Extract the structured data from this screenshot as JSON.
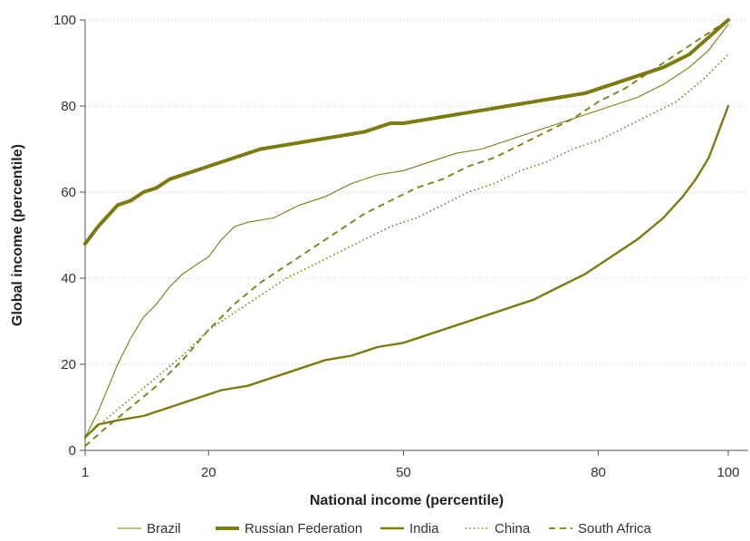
{
  "chart_data": {
    "type": "line",
    "xlabel": "National income (percentile)",
    "ylabel": "Global income (percentile)",
    "xlim": [
      1,
      100
    ],
    "ylim": [
      0,
      100
    ],
    "x_ticks": [
      1,
      20,
      50,
      80,
      100
    ],
    "y_ticks": [
      0,
      20,
      40,
      60,
      80,
      100
    ],
    "grid": "horizontal-dotted",
    "legend": "bottom",
    "color": "#7b7b10",
    "series": [
      {
        "name": "Brazil",
        "style": "thin",
        "points": [
          [
            1,
            3
          ],
          [
            3,
            9
          ],
          [
            6,
            20
          ],
          [
            8,
            26
          ],
          [
            10,
            31
          ],
          [
            12,
            34
          ],
          [
            14,
            38
          ],
          [
            16,
            41
          ],
          [
            18,
            43
          ],
          [
            20,
            45
          ],
          [
            22,
            49
          ],
          [
            24,
            52
          ],
          [
            26,
            53
          ],
          [
            30,
            54
          ],
          [
            34,
            57
          ],
          [
            38,
            59
          ],
          [
            42,
            62
          ],
          [
            46,
            64
          ],
          [
            50,
            65
          ],
          [
            54,
            67
          ],
          [
            58,
            69
          ],
          [
            62,
            70
          ],
          [
            66,
            72
          ],
          [
            70,
            74
          ],
          [
            74,
            76
          ],
          [
            78,
            78
          ],
          [
            82,
            80
          ],
          [
            86,
            82
          ],
          [
            90,
            85
          ],
          [
            94,
            89
          ],
          [
            97,
            93
          ],
          [
            100,
            99
          ]
        ]
      },
      {
        "name": "Russian Federation",
        "style": "thick",
        "points": [
          [
            1,
            48
          ],
          [
            3,
            52
          ],
          [
            6,
            57
          ],
          [
            8,
            58
          ],
          [
            10,
            60
          ],
          [
            12,
            61
          ],
          [
            14,
            63
          ],
          [
            16,
            64
          ],
          [
            18,
            65
          ],
          [
            20,
            66
          ],
          [
            24,
            68
          ],
          [
            28,
            70
          ],
          [
            32,
            71
          ],
          [
            36,
            72
          ],
          [
            40,
            73
          ],
          [
            44,
            74
          ],
          [
            48,
            76
          ],
          [
            50,
            76
          ],
          [
            54,
            77
          ],
          [
            58,
            78
          ],
          [
            62,
            79
          ],
          [
            66,
            80
          ],
          [
            70,
            81
          ],
          [
            74,
            82
          ],
          [
            78,
            83
          ],
          [
            82,
            85
          ],
          [
            86,
            87
          ],
          [
            90,
            89
          ],
          [
            94,
            92
          ],
          [
            97,
            96
          ],
          [
            100,
            100
          ]
        ]
      },
      {
        "name": "India",
        "style": "medium",
        "points": [
          [
            1,
            3
          ],
          [
            3,
            6
          ],
          [
            6,
            7
          ],
          [
            10,
            8
          ],
          [
            14,
            10
          ],
          [
            18,
            12
          ],
          [
            22,
            14
          ],
          [
            26,
            15
          ],
          [
            30,
            17
          ],
          [
            34,
            19
          ],
          [
            38,
            21
          ],
          [
            42,
            22
          ],
          [
            46,
            24
          ],
          [
            50,
            25
          ],
          [
            54,
            27
          ],
          [
            58,
            29
          ],
          [
            62,
            31
          ],
          [
            66,
            33
          ],
          [
            70,
            35
          ],
          [
            74,
            38
          ],
          [
            78,
            41
          ],
          [
            82,
            45
          ],
          [
            86,
            49
          ],
          [
            90,
            54
          ],
          [
            93,
            59
          ],
          [
            95,
            63
          ],
          [
            97,
            68
          ],
          [
            98,
            72
          ],
          [
            99,
            76
          ],
          [
            100,
            80
          ]
        ]
      },
      {
        "name": "China",
        "style": "dotted",
        "points": [
          [
            1,
            3
          ],
          [
            4,
            7
          ],
          [
            8,
            12
          ],
          [
            12,
            17
          ],
          [
            16,
            22
          ],
          [
            20,
            28
          ],
          [
            24,
            32
          ],
          [
            28,
            36
          ],
          [
            32,
            40
          ],
          [
            36,
            43
          ],
          [
            40,
            46
          ],
          [
            44,
            49
          ],
          [
            48,
            52
          ],
          [
            52,
            54
          ],
          [
            56,
            57
          ],
          [
            60,
            60
          ],
          [
            64,
            62
          ],
          [
            68,
            65
          ],
          [
            72,
            67
          ],
          [
            76,
            70
          ],
          [
            80,
            72
          ],
          [
            84,
            75
          ],
          [
            88,
            78
          ],
          [
            92,
            81
          ],
          [
            96,
            86
          ],
          [
            98,
            89
          ],
          [
            100,
            92
          ]
        ]
      },
      {
        "name": "South Africa",
        "style": "dashed",
        "points": [
          [
            1,
            1
          ],
          [
            4,
            5
          ],
          [
            8,
            10
          ],
          [
            12,
            15
          ],
          [
            16,
            21
          ],
          [
            20,
            28
          ],
          [
            24,
            34
          ],
          [
            28,
            39
          ],
          [
            32,
            43
          ],
          [
            36,
            47
          ],
          [
            40,
            51
          ],
          [
            44,
            55
          ],
          [
            48,
            58
          ],
          [
            52,
            61
          ],
          [
            56,
            63
          ],
          [
            60,
            66
          ],
          [
            64,
            68
          ],
          [
            68,
            71
          ],
          [
            72,
            74
          ],
          [
            76,
            77
          ],
          [
            80,
            81
          ],
          [
            84,
            84
          ],
          [
            88,
            88
          ],
          [
            92,
            92
          ],
          [
            96,
            96
          ],
          [
            100,
            100
          ]
        ]
      }
    ]
  }
}
